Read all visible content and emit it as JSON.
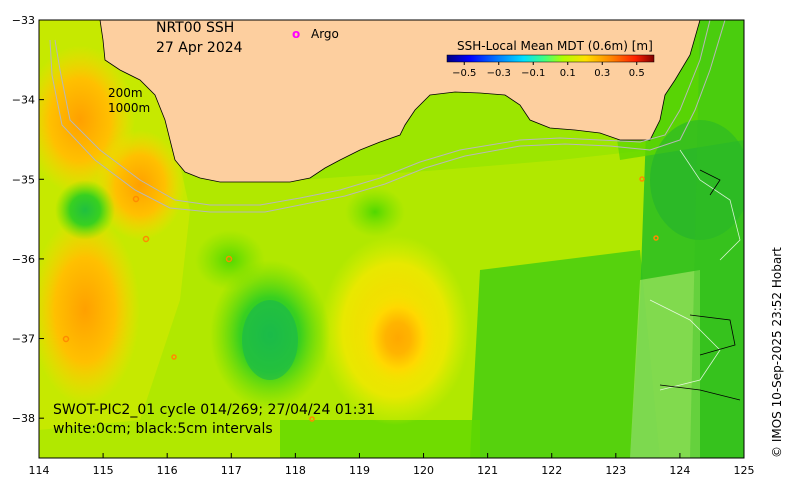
{
  "title": {
    "line1": "NRT00 SSH",
    "line2": "27 Apr 2024"
  },
  "legend": {
    "marker_glyph": "o",
    "argo_label": "Argo",
    "marker_color": "#ff00ff"
  },
  "colorbar": {
    "title": "SSH-Local Mean MDT (0.6m) [m]",
    "tick_labels": [
      "−0.5",
      "−0.3",
      "−0.1",
      "0.1",
      "0.3",
      "0.5"
    ],
    "colors": [
      "#00007f",
      "#0000ff",
      "#0080ff",
      "#00e0ff",
      "#40ff80",
      "#b0ff00",
      "#ffe000",
      "#ff8000",
      "#ff2000",
      "#800000"
    ]
  },
  "isobaths": {
    "label_200": "200m",
    "label_1000": "1000m"
  },
  "info": {
    "line1": "SWOT-PIC2_01 cycle 014/269; 27/04/24 01:31",
    "line2": "white:0cm; black:5cm intervals"
  },
  "credit": "© IMOS 10-Sep-2025 23:52 Hobart",
  "axes": {
    "x_ticks": [
      "114",
      "115",
      "116",
      "117",
      "118",
      "119",
      "120",
      "121",
      "122",
      "123",
      "124",
      "125"
    ],
    "y_ticks": [
      "−33",
      "−34",
      "−35",
      "−36",
      "−37",
      "−38"
    ]
  },
  "map_data": {
    "lon_range": [
      114,
      125
    ],
    "lat_range": [
      -38.5,
      -33
    ],
    "land_color": "#fdcf9f",
    "ocean_color": "#9ce600"
  }
}
